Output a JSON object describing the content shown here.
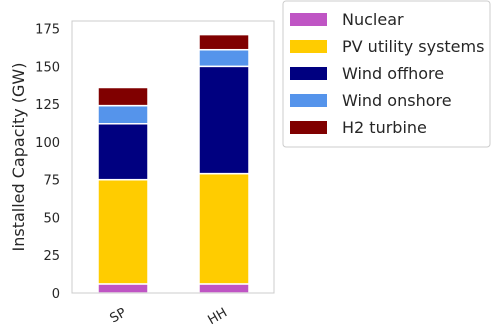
{
  "chart_data": {
    "type": "bar",
    "stacked": true,
    "categories": [
      "SP",
      "HH"
    ],
    "series": [
      {
        "name": "Nuclear",
        "values": [
          6,
          6
        ],
        "color": "#BF55C4"
      },
      {
        "name": "PV utility systems",
        "values": [
          69,
          73
        ],
        "color": "#FFCC00"
      },
      {
        "name": "Wind offhore",
        "values": [
          37,
          71
        ],
        "color": "#000080"
      },
      {
        "name": "Wind onshore",
        "values": [
          12,
          11
        ],
        "color": "#5594EB"
      },
      {
        "name": "H2 turbine",
        "values": [
          12,
          10
        ],
        "color": "#800000"
      }
    ],
    "title": "",
    "xlabel": "",
    "ylabel": "Installed Capacity (GW)",
    "ylim": [
      0,
      180
    ],
    "yticks": [
      0,
      25,
      50,
      75,
      100,
      125,
      150,
      175
    ],
    "grid": false,
    "legend_position": "outside-top-right"
  }
}
